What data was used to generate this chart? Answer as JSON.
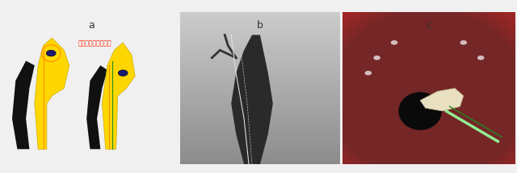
{
  "fig_width": 6.4,
  "fig_height": 2.15,
  "dpi": 100,
  "bg_color": "#f0f0f0",
  "panel_a_bg": "#ffffff",
  "panel_b_bg": "#888888",
  "panel_c_bg": "#aa3333",
  "label_a": "a",
  "label_b": "b",
  "label_c": "c",
  "annotation_text": "ナイフで引き下げる",
  "annotation_color": "#ff2200",
  "yellow_color": "#FFD700",
  "black_color": "#111111",
  "blue_stone_color": "#1a1a6e",
  "orange_line_color": "#FF8C00",
  "green_line_color": "#228B22",
  "border_color": "#aaaaaa",
  "panel_borders": {
    "a": [
      0.01,
      0.05,
      0.335,
      0.88
    ],
    "b": [
      0.345,
      0.08,
      0.315,
      0.84
    ],
    "c": [
      0.665,
      0.05,
      0.33,
      0.88
    ]
  }
}
